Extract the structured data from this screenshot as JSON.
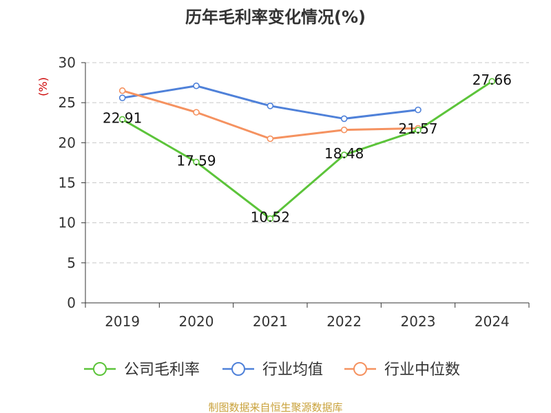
{
  "chart_data": {
    "type": "line",
    "title": "历年毛利率变化情况(%)",
    "ylabel": "(%)",
    "xlabel": "",
    "categories": [
      "2019",
      "2020",
      "2021",
      "2022",
      "2023",
      "2024"
    ],
    "yticks": [
      "0",
      "5",
      "10",
      "15",
      "20",
      "25",
      "30"
    ],
    "ylim": [
      0,
      30
    ],
    "grid": true,
    "legend_position": "bottom",
    "series": [
      {
        "name": "公司毛利率",
        "color": "#5cc43a",
        "values": [
          22.91,
          17.59,
          10.52,
          18.48,
          21.57,
          27.66
        ],
        "labels": [
          "22.91",
          "17.59",
          "10.52",
          "18.48",
          "21.57",
          "27.66"
        ]
      },
      {
        "name": "行业均值",
        "color": "#4f81d9",
        "values": [
          25.6,
          27.1,
          24.6,
          23.0,
          24.1,
          null
        ]
      },
      {
        "name": "行业中位数",
        "color": "#f59260",
        "values": [
          26.5,
          23.8,
          20.5,
          21.6,
          21.8,
          null
        ]
      }
    ],
    "source": "制图数据来自恒生聚源数据库"
  }
}
